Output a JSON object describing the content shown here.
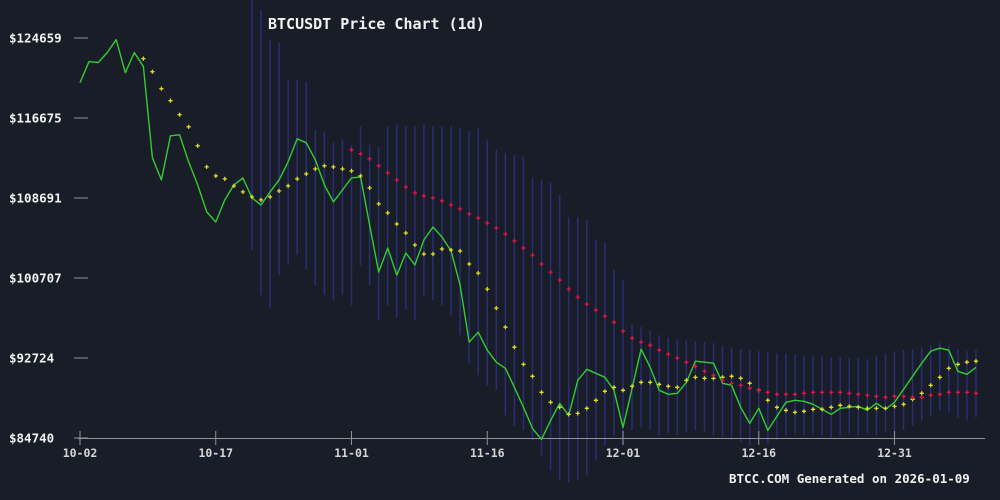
{
  "title": "BTCUSDT Price Chart (1d)",
  "footer": "BTCC.COM Generated on 2026-01-09",
  "colors": {
    "background": "#191d27",
    "axis": "#8f9399",
    "y_label": "#f2f2f2",
    "x_label": "#d6d6d6",
    "title": "#f2f2f2",
    "footer": "#f2f2f2",
    "price_line": "#33cc33",
    "ma_fast_dots": "#dcdc28",
    "ma_slow_dots": "#dc1447",
    "range_bars": "#282d78"
  },
  "y_axis": {
    "labels": [
      "$124659",
      "$116675",
      "$108691",
      "$100707",
      "$92724",
      "$84740"
    ],
    "values": [
      124659,
      116675,
      108691,
      100707,
      92724,
      84740
    ]
  },
  "x_axis": {
    "labels": [
      "10-02",
      "10-17",
      "11-01",
      "11-16",
      "12-01",
      "12-16",
      "12-31"
    ],
    "days": [
      0,
      15,
      30,
      45,
      60,
      75,
      90
    ]
  },
  "chart_data": {
    "type": "line",
    "interval": "1d",
    "days": 100,
    "first_tick_label": "10-02",
    "last_point_label": "01-09",
    "ylim": [
      84740,
      124659
    ],
    "grid": false,
    "legend": "none",
    "price": {
      "style": "solid-line",
      "values": [
        120200,
        122300,
        122200,
        123200,
        124500,
        121200,
        123200,
        121800,
        112700,
        110500,
        114900,
        115000,
        112300,
        110000,
        107300,
        106300,
        108500,
        110000,
        110700,
        108700,
        108000,
        109300,
        110500,
        112300,
        114600,
        114200,
        112500,
        110000,
        108300,
        109500,
        110700,
        110800,
        106000,
        101300,
        103700,
        101000,
        103200,
        102000,
        104500,
        105800,
        104800,
        103400,
        100000,
        94300,
        95300,
        93500,
        92300,
        91700,
        89800,
        87800,
        85700,
        84600,
        86500,
        88200,
        87000,
        90500,
        91600,
        91200,
        90800,
        89500,
        85800,
        89700,
        93600,
        91800,
        89500,
        89100,
        89200,
        90300,
        92400,
        92300,
        92200,
        90200,
        90000,
        87800,
        86200,
        87700,
        85500,
        86900,
        88300,
        88500,
        88400,
        88100,
        87600,
        87100,
        87700,
        87800,
        87900,
        87500,
        88200,
        87600,
        88300,
        89600,
        90900,
        92200,
        93400,
        93700,
        93500,
        91400,
        91100,
        91800
      ]
    },
    "ma_fast": {
      "style": "dotted-cross",
      "start_index": 7,
      "values": [
        122600,
        121300,
        119600,
        118400,
        117000,
        115800,
        113900,
        111800,
        110900,
        110600,
        109900,
        109300,
        108800,
        108500,
        108800,
        109400,
        109900,
        110600,
        111100,
        111600,
        111900,
        111800,
        111600,
        111400,
        110900,
        109700,
        108100,
        107200,
        106100,
        105200,
        104000,
        103100,
        103100,
        103600,
        103500,
        103400,
        102100,
        101200,
        99600,
        97700,
        95800,
        93800,
        92100,
        90900,
        89300,
        88300,
        87800,
        87100,
        87200,
        87700,
        88500,
        89400,
        89800,
        89500,
        89900,
        90300,
        90300,
        90100,
        89900,
        89800,
        90500,
        90800,
        90700,
        90700,
        90800,
        90900,
        90700,
        90200,
        89500,
        88500,
        87800,
        87500,
        87300,
        87400,
        87600,
        87600,
        87800,
        88000,
        87900,
        87800,
        87700,
        87700,
        87700,
        87900,
        88100,
        88600,
        89200,
        90000,
        90800,
        91700,
        92100,
        92300,
        92400
      ]
    },
    "ma_slow": {
      "style": "dotted-cross",
      "start_index": 30,
      "values": [
        113500,
        113100,
        112600,
        111900,
        111200,
        110500,
        109800,
        109200,
        108900,
        108700,
        108400,
        108000,
        107600,
        107100,
        106700,
        106200,
        105700,
        105100,
        104400,
        103700,
        103000,
        102100,
        101300,
        100500,
        99600,
        98800,
        98100,
        97500,
        96900,
        96300,
        95400,
        94700,
        94300,
        94000,
        93500,
        93100,
        92700,
        92300,
        91900,
        91400,
        91000,
        90500,
        90200,
        90000,
        89700,
        89500,
        89300,
        89100,
        89100,
        89100,
        89200,
        89300,
        89300,
        89300,
        89300,
        89200,
        89100,
        89000,
        88900,
        88800,
        88900,
        88900,
        88800,
        88800,
        89000,
        89100,
        89300,
        89300,
        89300,
        89200
      ]
    },
    "range_bars": {
      "style": "vertical-line",
      "start_index": 19,
      "high": [
        128400,
        127500,
        124500,
        124200,
        120500,
        120500,
        120300,
        115500,
        115300,
        114200,
        114500,
        114000,
        115800,
        114000,
        113800,
        115800,
        116000,
        115800,
        115800,
        116000,
        115800,
        115800,
        115800,
        115700,
        115400,
        115700,
        114500,
        113500,
        113200,
        113000,
        112800,
        110800,
        110500,
        110200,
        109000,
        106800,
        106800,
        106500,
        104500,
        104200,
        101500,
        100500,
        96000,
        95800,
        95500,
        95000,
        94800,
        94600,
        94500,
        94400,
        94300,
        94200,
        94000,
        93800,
        93600,
        93500,
        93400,
        93300,
        93200,
        93200,
        93100,
        93000,
        93000,
        92900,
        92800,
        92800,
        92700,
        92700,
        92600,
        93000,
        93200,
        93400,
        93500,
        93600,
        93800,
        94000,
        94200,
        94000,
        93600,
        93400,
        93500
      ],
      "low": [
        103500,
        99000,
        97700,
        101000,
        102000,
        103000,
        101500,
        100000,
        99000,
        98500,
        99000,
        98000,
        102000,
        100000,
        96500,
        98000,
        96700,
        97500,
        96500,
        98900,
        98500,
        98000,
        97000,
        95000,
        92200,
        91000,
        90000,
        89500,
        87000,
        86000,
        85500,
        84500,
        83000,
        81500,
        80500,
        80300,
        80500,
        81000,
        82500,
        84000,
        85000,
        84000,
        85500,
        85800,
        85500,
        85000,
        85200,
        85000,
        85300,
        85500,
        85300,
        85000,
        84800,
        84500,
        84300,
        84000,
        84500,
        84200,
        84500,
        85000,
        85200,
        85000,
        85200,
        85000,
        84800,
        85000,
        85200,
        85000,
        85200,
        85000,
        85300,
        85000,
        85500,
        86000,
        86500,
        87000,
        87500,
        87300,
        86800,
        86500,
        86800
      ]
    }
  }
}
